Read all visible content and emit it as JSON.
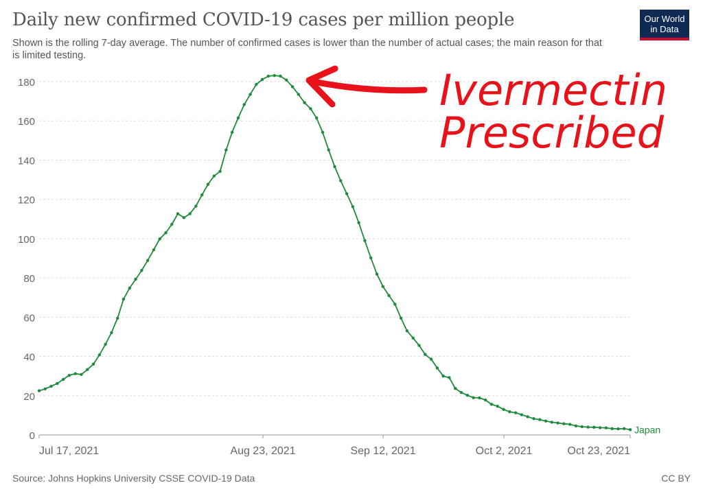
{
  "header": {
    "title": "Daily new confirmed COVID-19 cases per million people",
    "subtitle": "Shown is the rolling 7-day average. The number of confirmed cases is lower than the number of actual cases; the main reason for that is limited testing."
  },
  "logo": {
    "line1": "Our World",
    "line2": "in Data"
  },
  "footer": {
    "source": "Source: Johns Hopkins University CSSE COVID-19 Data",
    "license": "CC BY"
  },
  "annotation": {
    "line1": "Ivermectin",
    "line2": "Prescribed",
    "color": "#e8121a"
  },
  "colors": {
    "series": "#1f8a3c",
    "grid": "#dddddd",
    "axis": "#999999",
    "text": "#666666"
  },
  "chart_data": {
    "type": "line",
    "title": "Daily new confirmed COVID-19 cases per million people",
    "subtitle": "Shown is the rolling 7-day average. The number of confirmed cases is lower than the number of actual cases; the main reason for that is limited testing.",
    "ylim": [
      0,
      180
    ],
    "yticks": [
      0,
      20,
      40,
      60,
      80,
      100,
      120,
      140,
      160,
      180
    ],
    "xtick_labels": [
      "Jul 17, 2021",
      "Aug 23, 2021",
      "Sep 12, 2021",
      "Oct 2, 2021",
      "Oct 23, 2021"
    ],
    "grid": true,
    "series": [
      {
        "name": "Japan",
        "values": [
          22.5,
          23.5,
          24.8,
          26.2,
          28.3,
          30.4,
          31.2,
          30.8,
          33.3,
          36.1,
          40.8,
          46.2,
          52.1,
          59.5,
          69.2,
          74.8,
          79.3,
          83.8,
          88.9,
          94.3,
          99.9,
          103.0,
          107.3,
          112.7,
          110.7,
          112.7,
          116.6,
          122.3,
          127.7,
          131.9,
          134.3,
          145.2,
          154.2,
          161.5,
          168.3,
          173.5,
          178.6,
          181.1,
          182.8,
          183.1,
          182.8,
          180.8,
          177.4,
          173.5,
          169.3,
          166.2,
          161.5,
          154.2,
          145.2,
          136.7,
          129.5,
          122.9,
          116.3,
          108.1,
          99.0,
          90.2,
          82.0,
          75.6,
          71.0,
          66.6,
          59.5,
          53.0,
          49.4,
          45.6,
          41.0,
          38.6,
          34.1,
          30.0,
          29.2,
          23.7,
          21.6,
          20.2,
          19.0,
          18.9,
          17.8,
          15.6,
          14.6,
          13.0,
          11.8,
          11.3,
          10.3,
          9.3,
          8.3,
          7.8,
          7.1,
          6.5,
          6.1,
          5.7,
          5.4,
          4.6,
          4.2,
          4.0,
          3.9,
          3.7,
          3.6,
          3.2,
          3.1,
          3.2,
          2.7
        ]
      }
    ]
  }
}
